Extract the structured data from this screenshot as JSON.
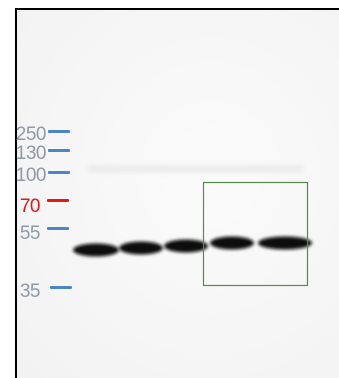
{
  "ladder": {
    "markers": [
      {
        "label": "250",
        "color": "#8e9aa8",
        "line_color": "#4a86c5"
      },
      {
        "label": "130",
        "color": "#8e9aa8",
        "line_color": "#4a86c5"
      },
      {
        "label": "100",
        "color": "#8e9aa8",
        "line_color": "#4a86c5"
      },
      {
        "label": "70",
        "color": "#e01a16",
        "line_color": "#e01a16"
      },
      {
        "label": "55",
        "color": "#8e9aa8",
        "line_color": "#4a86c5"
      },
      {
        "label": "35",
        "color": "#8e9aa8",
        "line_color": "#4a86c5"
      }
    ]
  },
  "blot": {
    "lane_count": 5,
    "band_color": "#0b0b0b",
    "highlight_box_color": "#5a8a4a"
  }
}
